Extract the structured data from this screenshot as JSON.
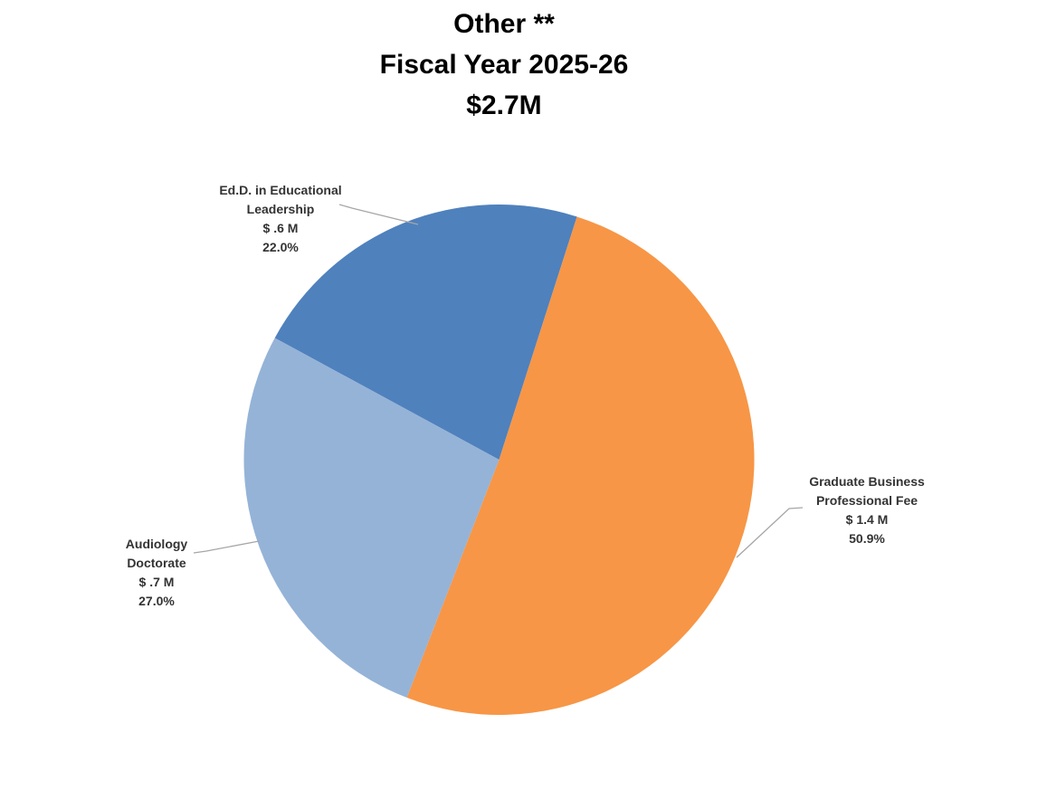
{
  "title": {
    "line1": "Other **",
    "line2": "Fiscal Year 2025-26",
    "line3": "$2.7M"
  },
  "chart_data": {
    "type": "pie",
    "title": "Other **",
    "subtitle": "Fiscal Year 2025-26",
    "total_label": "$2.7M",
    "total_millions": 2.7,
    "legend": "none",
    "background_color": "#ffffff",
    "leader_line_color": "#a6a6a6",
    "label_text_color": "#333333",
    "title_text_color": "#000000",
    "start_angle_deg": 298.5,
    "direction": "clockwise",
    "slices": [
      {
        "slug": "edd-educational-leadership",
        "name": "Ed.D. in Educational Leadership",
        "name_lines": [
          "Ed.D. in Educational",
          "Leadership"
        ],
        "value_label": "$ .6 M",
        "value_millions": 0.6,
        "percent": 22.0,
        "percent_label": "22.0%",
        "color": "#4F81BD"
      },
      {
        "slug": "graduate-business-professional-fee",
        "name": "Graduate Business Professional Fee",
        "name_lines": [
          "Graduate Business",
          "Professional Fee"
        ],
        "value_label": "$ 1.4 M",
        "value_millions": 1.4,
        "percent": 50.9,
        "percent_label": "50.9%",
        "color": "#F79646"
      },
      {
        "slug": "audiology-doctorate",
        "name": "Audiology Doctorate",
        "name_lines": [
          "Audiology",
          "Doctorate"
        ],
        "value_label": "$ .7 M",
        "value_millions": 0.7,
        "percent": 27.0,
        "percent_label": "27.0%",
        "color": "#95B3D7"
      }
    ]
  }
}
